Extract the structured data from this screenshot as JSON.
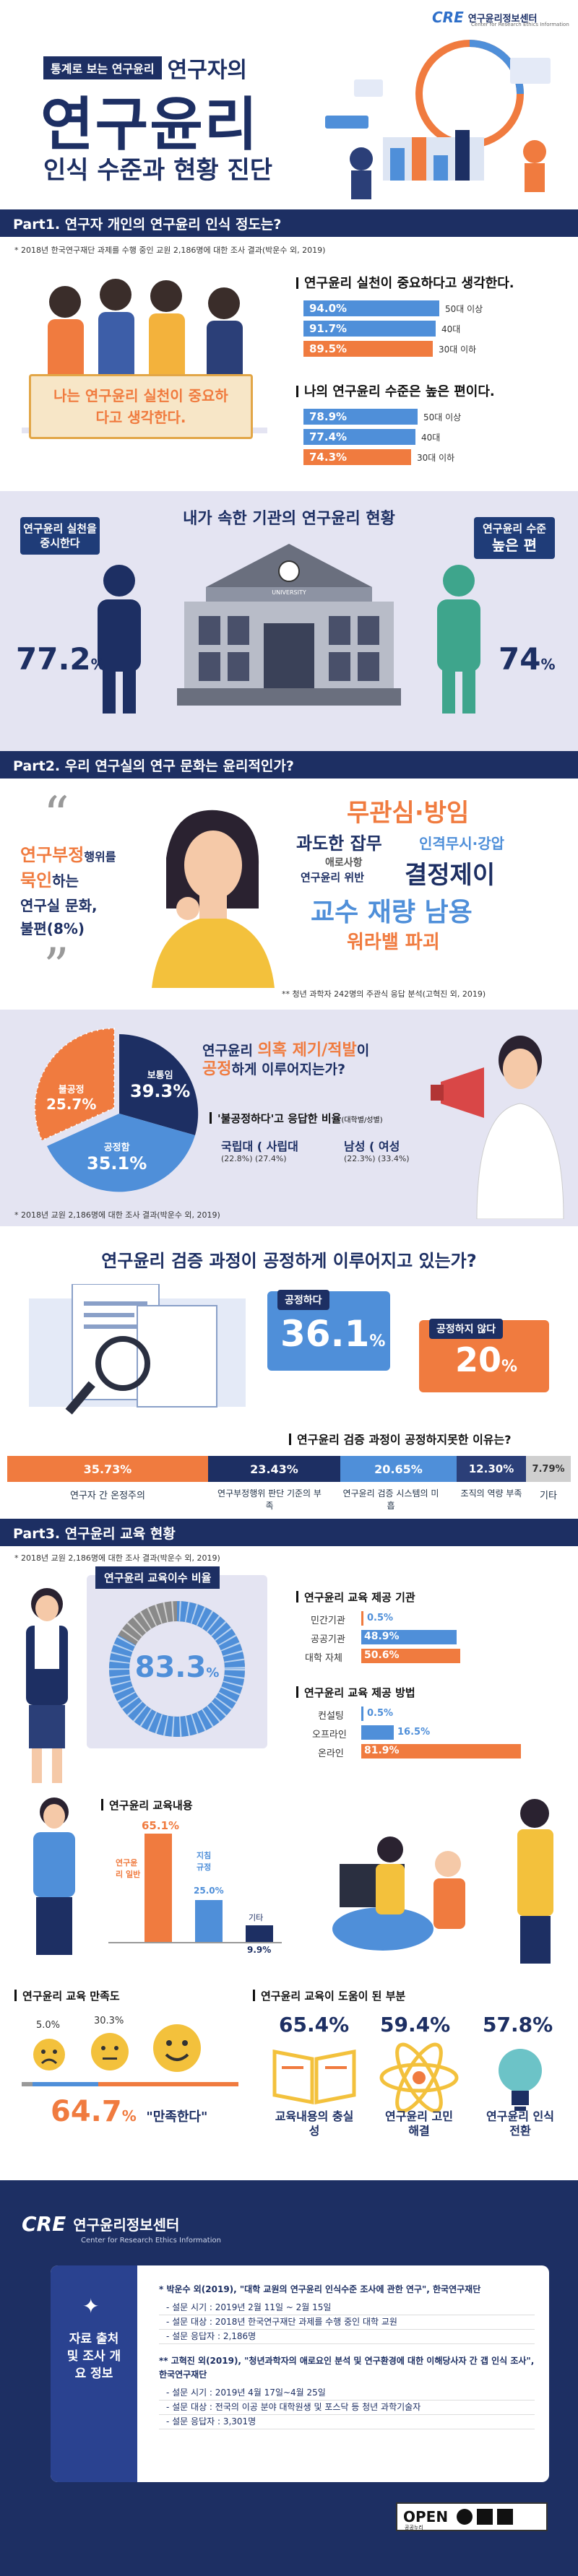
{
  "brand": {
    "logo": "CRE",
    "name": "연구윤리정보센터",
    "sub": "Center for Research Ethics Information"
  },
  "hero": {
    "kicker_a": "통계로 보는 연구윤리",
    "kicker_b": "연구자의",
    "title": "연구윤리",
    "subtitle": "인식 수준과 현황 진단"
  },
  "part1": {
    "title": "Part1. 연구자 개인의 연구윤리 인식 정도는?",
    "note": "* 2018년 한국연구재단 과제를 수행 중인 교원 2,186명에 대한 조사 결과(박운수 외, 2019)",
    "sign": "나는 연구윤리 실천이 중요하다고 생각한다.",
    "q1": {
      "heading": "연구윤리 실천이 중요하다고 생각한다.",
      "rows": [
        {
          "value": 94.0,
          "label": "94.0%",
          "group": "50대 이상"
        },
        {
          "value": 91.7,
          "label": "91.7%",
          "group": "40대"
        },
        {
          "value": 89.5,
          "label": "89.5%",
          "group": "30대 이하"
        }
      ]
    },
    "q2": {
      "heading": "나의 연구윤리 수준은 높은 편이다.",
      "rows": [
        {
          "value": 78.9,
          "label": "78.9%",
          "group": "50대 이상"
        },
        {
          "value": 77.4,
          "label": "77.4%",
          "group": "40대"
        },
        {
          "value": 74.3,
          "label": "74.3%",
          "group": "30대 이하"
        }
      ]
    },
    "inst_title": "내가 속한 기관의 연구윤리 현황",
    "left_bubble": "연구윤리 실천을 중시한다",
    "left_value": "77.2",
    "right_bubble_a": "연구윤리 수준",
    "right_bubble_b": "높은 편",
    "right_value": "74",
    "pct": "%",
    "building": "UNIVERSITY"
  },
  "part2": {
    "title": "Part2. 우리 연구실의 연구 문화는 윤리적인가?",
    "quote": {
      "l1a": "연구부정",
      "l1b": "행위를",
      "l2a": "묵인",
      "l2b": "하는",
      "l3": "연구실 문화,",
      "l4": "불편(8%)"
    },
    "words": [
      "무관심·방임",
      "과도한 잡무",
      "인격무시·강압",
      "애로사항",
      "연구윤리 위반",
      "결정제이",
      "교수 재량 남용",
      "워라밸 파괴"
    ],
    "word_note": "** 청년 과학자 242명의 주관식 응답 분석(고혁진 외, 2019)",
    "pie": {
      "s1": "보통임",
      "v1": "39.3%",
      "s2": "불공정",
      "v2": "25.7%",
      "s3": "공정함",
      "v3": "35.1%"
    },
    "report_q1a": "연구윤리 ",
    "report_q1b": "의혹 제기/적발",
    "report_q1c": "이 ",
    "report_q2a": "공정",
    "report_q2b": "하게 이루어지는가?",
    "unfair_head": "'불공정하다'고 응답한 비율",
    "unfair_suffix": "(대학별/성별)",
    "unfair": {
      "a1": "국립대",
      "a2": "( 사립대",
      "av1": "(22.8%)",
      "av2": "(27.4%)",
      "b1": "남성",
      "b2": "( 여성",
      "bv1": "(22.3%)",
      "bv2": "(33.4%)"
    },
    "pie_note": "* 2018년 교원 2,186명에 대한 조사 결과(박운수 외, 2019)",
    "verify_title": "연구윤리 검증 과정이 공정하게 이루어지고 있는가?",
    "fair_label": "공정하다",
    "fair_value": "36.1",
    "unfair_label": "공정하지 않다",
    "unfair_value": "20",
    "reason_head": "연구윤리 검증 과정이 공정하지못한 이유는?",
    "reasons": [
      {
        "value": 35.73,
        "label": "35.73%",
        "name": "연구자 간 온정주의"
      },
      {
        "value": 23.43,
        "label": "23.43%",
        "name": "연구부정행위 판단 기준의 부족"
      },
      {
        "value": 20.65,
        "label": "20.65%",
        "name": "연구윤리 검증 시스템의 미흡"
      },
      {
        "value": 12.3,
        "label": "12.30%",
        "name": "조직의 역량 부족"
      },
      {
        "value": 7.79,
        "label": "7.79%",
        "name": "기타"
      }
    ]
  },
  "part3": {
    "title": "Part3. 연구윤리 교육 현황",
    "note": "* 2018년 교원 2,186명에 대한 조사 결과(박운수 외, 2019)",
    "completion_head": "연구윤리 교육이수 비율",
    "completion": {
      "value": 83.3,
      "label": "83.3",
      "pct": "%"
    },
    "org_head": "연구윤리 교육 제공 기관",
    "org": [
      {
        "name": "민간기관",
        "value": 0.5,
        "label": "0.5%"
      },
      {
        "name": "공공기관",
        "value": 48.9,
        "label": "48.9%"
      },
      {
        "name": "대학 자체",
        "value": 50.6,
        "label": "50.6%"
      }
    ],
    "method_head": "연구윤리 교육 제공 방법",
    "method": [
      {
        "name": "컨설팅",
        "value": 0.5,
        "label": "0.5%"
      },
      {
        "name": "오프라인",
        "value": 16.5,
        "label": "16.5%"
      },
      {
        "name": "온라인",
        "value": 81.9,
        "label": "81.9%"
      }
    ],
    "content_head": "연구윤리 교육내용",
    "content": [
      {
        "name": "연구윤리 일반",
        "value": 65.1,
        "label": "65.1%"
      },
      {
        "name": "지침 규정",
        "value": 25.0,
        "label": "25.0%"
      },
      {
        "name": "기타",
        "value": 9.9,
        "label": "9.9%"
      }
    ],
    "satisfaction_head": "연구윤리 교육 만족도",
    "satisfaction": {
      "s1": "5.0%",
      "s2": "30.3%",
      "big": "64.7",
      "pct": "%",
      "tag": "\"만족한다\""
    },
    "help_head": "연구윤리 교육이 도움이 된 부분",
    "help": [
      {
        "value": "65.4%",
        "name": "교육내용의 충실성"
      },
      {
        "value": "59.4%",
        "name": "연구윤리 고민해결"
      },
      {
        "value": "57.8%",
        "name": "연구윤리 인식전환"
      }
    ]
  },
  "footer": {
    "side": "자료 출처 및 조사 개요 정보",
    "src1": "* 박운수 외(2019), \"대학 교원의 연구윤리 인식수준 조사에 관한 연구\", 한국연구재단",
    "src1_items": [
      "- 설문 시기 : 2019년 2월 11일 ~ 2월 15일",
      "- 설문 대상 : 2018년 한국연구재단 과제를 수행 중인 대학 교원",
      "- 설문 응답자 : 2,186명"
    ],
    "src2": "** 고혁진 외(2019), \"청년과학자의 애로요인 분석 및 연구환경에 대한 이해당사자 간 갭 인식 조사\", 한국연구재단",
    "src2_items": [
      "- 설문 시기 : 2019년 4월 17일~4월 25일",
      "- 설문 대상 : 전국의 이공 분야 대학원생 및 포스닥 등 청년 과학기술자",
      "- 설문 응답자 : 3,301명"
    ],
    "license": "OPEN",
    "license_sub": "공공누리"
  },
  "colors": {
    "navy": "#1d2f63",
    "blue": "#4f8fd9",
    "orange": "#f07b3f",
    "cream": "#f6eee4",
    "lav": "#e4e4f2"
  }
}
